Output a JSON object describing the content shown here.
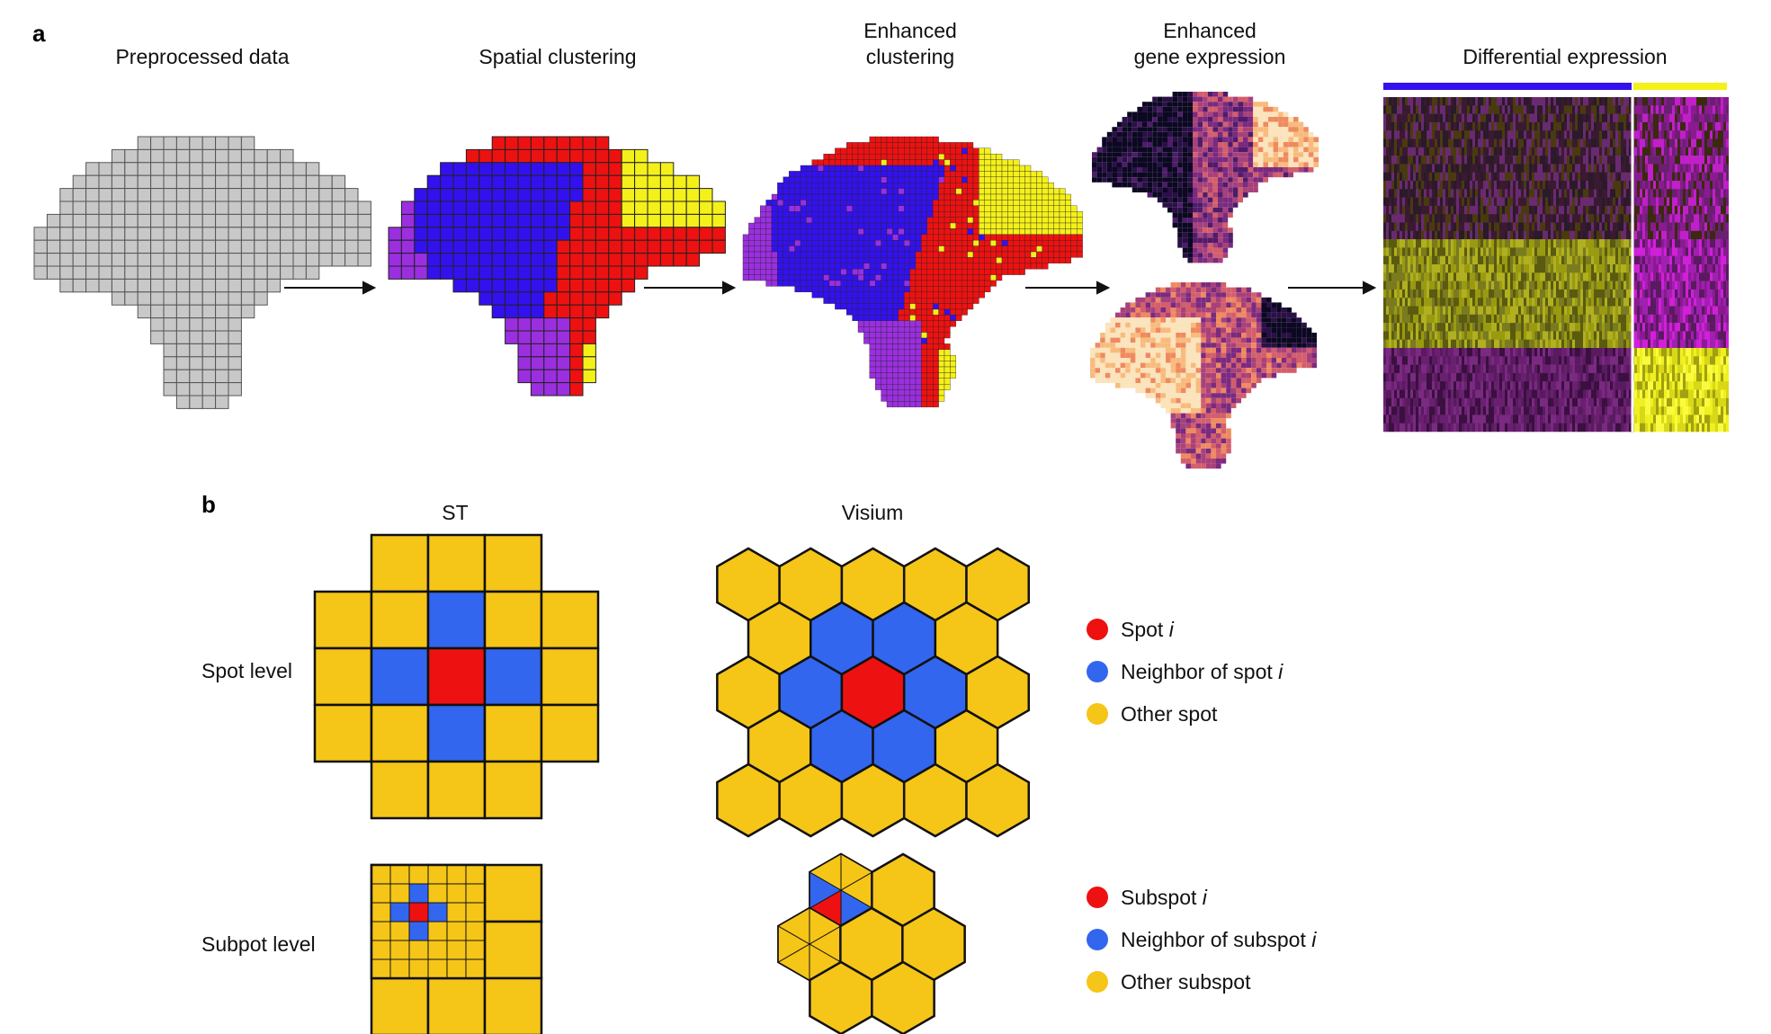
{
  "panel_a": {
    "label": "a",
    "steps": [
      {
        "title_lines": [
          "Preprocessed data"
        ]
      },
      {
        "title_lines": [
          "Spatial clustering"
        ]
      },
      {
        "title_lines": [
          "Enhanced",
          "clustering"
        ]
      },
      {
        "title_lines": [
          "Enhanced",
          "gene expression"
        ]
      },
      {
        "title_lines": [
          "Differential expression"
        ]
      }
    ]
  },
  "panel_b": {
    "label": "b",
    "column_titles": [
      "ST",
      "Visium"
    ],
    "row_labels": [
      "Spot level",
      "Subpot level"
    ],
    "legend_spot": [
      {
        "text": "Spot ",
        "italic": "i",
        "color": "#ee1111"
      },
      {
        "text": "Neighbor of spot ",
        "italic": "i",
        "color": "#3366ee"
      },
      {
        "text": "Other spot",
        "italic": "",
        "color": "#f5c518"
      }
    ],
    "legend_subspot": [
      {
        "text": "Subspot ",
        "italic": "i",
        "color": "#ee1111"
      },
      {
        "text": "Neighbor of subspot ",
        "italic": "i",
        "color": "#3366ee"
      },
      {
        "text": "Other subspot",
        "italic": "",
        "color": "#f5c518"
      }
    ]
  },
  "colors": {
    "gray_spot": "#c8c8c8",
    "cluster_blue": "#3311ee",
    "cluster_red": "#ee1111",
    "cluster_yellow": "#f4f01a",
    "cluster_purple": "#9b2fe0",
    "spot_red": "#ee1111",
    "spot_blue": "#3366ee",
    "spot_yellow": "#f5c518",
    "heat_bar_blue": "#3311ee",
    "heat_bar_yellow": "#f4f01a"
  }
}
